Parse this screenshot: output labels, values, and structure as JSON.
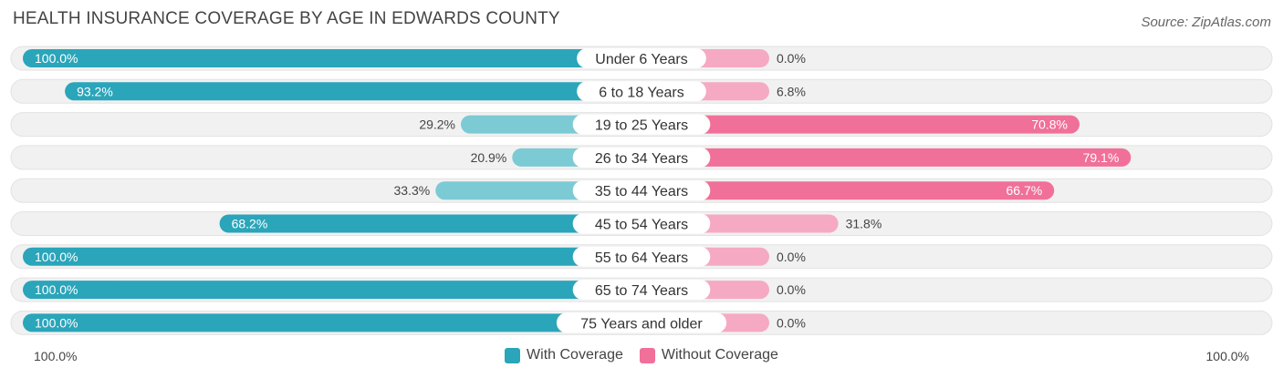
{
  "chart_data": {
    "type": "bar",
    "title": "HEALTH INSURANCE COVERAGE BY AGE IN EDWARDS COUNTY",
    "source": "Source: ZipAtlas.com",
    "categories": [
      "Under 6 Years",
      "6 to 18 Years",
      "19 to 25 Years",
      "26 to 34 Years",
      "35 to 44 Years",
      "45 to 54 Years",
      "55 to 64 Years",
      "65 to 74 Years",
      "75 Years and older"
    ],
    "series": [
      {
        "name": "With Coverage",
        "values": [
          100.0,
          93.2,
          29.2,
          20.9,
          33.3,
          68.2,
          100.0,
          100.0,
          100.0
        ],
        "labels": [
          "100.0%",
          "93.2%",
          "29.2%",
          "20.9%",
          "33.3%",
          "68.2%",
          "100.0%",
          "100.0%",
          "100.0%"
        ]
      },
      {
        "name": "Without Coverage",
        "values": [
          0.0,
          6.8,
          70.8,
          79.1,
          66.7,
          31.8,
          0.0,
          0.0,
          0.0
        ],
        "labels": [
          "0.0%",
          "6.8%",
          "70.8%",
          "79.1%",
          "66.7%",
          "31.8%",
          "0.0%",
          "0.0%",
          "0.0%"
        ]
      }
    ],
    "axis": {
      "left_label": "100.0%",
      "right_label": "100.0%",
      "range": [
        0,
        100
      ]
    },
    "legend": [
      "With Coverage",
      "Without Coverage"
    ],
    "colors": {
      "with_strong": "#2aa5ba",
      "with_light": "#7ccad4",
      "without_strong": "#f07099",
      "without_light": "#f6a9c3",
      "track": "#f1f1f1"
    }
  }
}
